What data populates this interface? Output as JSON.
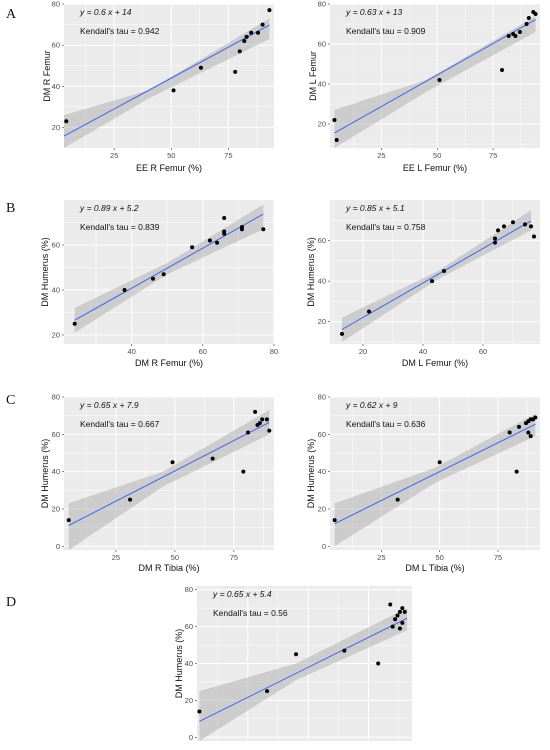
{
  "figure": {
    "panel_letters": [
      "A",
      "B",
      "C",
      "D"
    ]
  },
  "colors": {
    "panel_bg": "#ebebeb",
    "grid": "#ffffff",
    "ribbon": "#a6a6a6",
    "line": "#3366ff",
    "point": "#000000"
  },
  "chart_data": [
    {
      "id": "A-left",
      "type": "scatter",
      "equation": "y = 0.6 x + 14",
      "kendall": "Kendall's tau = 0.942",
      "xlabel": "EE R Femur (%)",
      "ylabel": "DM R Femur",
      "xlim": [
        3,
        95
      ],
      "ylim": [
        10,
        80
      ],
      "xticks": [
        25,
        50,
        75
      ],
      "yticks": [
        20,
        40,
        60,
        80
      ],
      "fit": {
        "slope": 0.6,
        "intercept": 14,
        "ribbon": [
          [
            3,
            7,
            26
          ],
          [
            40,
            34,
            38
          ],
          [
            93,
            63,
            73
          ]
        ]
      },
      "points": [
        [
          4,
          23
        ],
        [
          51,
          38
        ],
        [
          63,
          49
        ],
        [
          78,
          47
        ],
        [
          80,
          57
        ],
        [
          82,
          62
        ],
        [
          83,
          64
        ],
        [
          85,
          66
        ],
        [
          88,
          66
        ],
        [
          90,
          70
        ],
        [
          93,
          77
        ]
      ]
    },
    {
      "id": "A-right",
      "type": "scatter",
      "equation": "y = 0.63 x + 13",
      "kendall": "Kendall's tau = 0.909",
      "xlabel": "EE L Femur (%)",
      "ylabel": "DM L Femur",
      "xlim": [
        2,
        96
      ],
      "ylim": [
        8,
        80
      ],
      "xticks": [
        25,
        50,
        75
      ],
      "yticks": [
        20,
        40,
        60,
        80
      ],
      "fit": {
        "slope": 0.63,
        "intercept": 13,
        "ribbon": [
          [
            4,
            6,
            27
          ],
          [
            45,
            36,
            42
          ],
          [
            94,
            66,
            74
          ]
        ]
      },
      "points": [
        [
          4,
          22
        ],
        [
          5,
          12
        ],
        [
          51,
          42
        ],
        [
          79,
          47
        ],
        [
          82,
          64
        ],
        [
          84,
          65
        ],
        [
          85,
          64
        ],
        [
          87,
          66
        ],
        [
          90,
          70
        ],
        [
          91,
          73
        ],
        [
          93,
          76
        ],
        [
          94,
          75
        ]
      ]
    },
    {
      "id": "B-left",
      "type": "scatter",
      "equation": "y = 0.89 x + 5.2",
      "kendall": "Kendall's tau = 0.839",
      "xlabel": "DM R Femur (%)",
      "ylabel": "DM Humerus (%)",
      "xlim": [
        21,
        80
      ],
      "ylim": [
        16,
        80
      ],
      "xticks": [
        20,
        40,
        60,
        80
      ],
      "yticks": [
        20,
        40,
        60
      ],
      "fit": {
        "slope": 0.89,
        "intercept": 5.2,
        "ribbon": [
          [
            24,
            21,
            32
          ],
          [
            50,
            47,
            52
          ],
          [
            77,
            67,
            78
          ]
        ]
      },
      "points": [
        [
          24,
          25
        ],
        [
          38,
          40
        ],
        [
          46,
          45
        ],
        [
          49,
          47
        ],
        [
          57,
          59
        ],
        [
          62,
          62
        ],
        [
          64,
          61
        ],
        [
          66,
          65
        ],
        [
          66,
          66
        ],
        [
          66,
          72
        ],
        [
          71,
          67
        ],
        [
          71,
          68
        ],
        [
          77,
          67
        ]
      ]
    },
    {
      "id": "B-right",
      "type": "scatter",
      "equation": "y = 0.85 x + 5.1",
      "kendall": "Kendall's tau = 0.758",
      "xlabel": "DM L Femur (%)",
      "ylabel": "DM Humerus (%)",
      "xlim": [
        9,
        79
      ],
      "ylim": [
        9,
        80
      ],
      "xticks": [
        20,
        40,
        60
      ],
      "yticks": [
        20,
        40,
        60
      ],
      "fit": {
        "slope": 0.85,
        "intercept": 5.1,
        "ribbon": [
          [
            13,
            10,
            22
          ],
          [
            45,
            41,
            45
          ],
          [
            76,
            65,
            75
          ]
        ]
      },
      "points": [
        [
          13,
          14
        ],
        [
          22,
          25
        ],
        [
          43,
          40
        ],
        [
          47,
          45
        ],
        [
          64,
          59
        ],
        [
          64,
          61
        ],
        [
          65,
          65
        ],
        [
          67,
          67
        ],
        [
          70,
          69
        ],
        [
          74,
          68
        ],
        [
          76,
          67
        ],
        [
          77,
          62
        ]
      ]
    },
    {
      "id": "C-left",
      "type": "scatter",
      "equation": "y = 0.65 x + 7.9",
      "kendall": "Kendall's tau = 0.667",
      "xlabel": "DM R Tibia (%)",
      "ylabel": "DM Humerus (%)",
      "xlim": [
        3,
        92
      ],
      "ylim": [
        -2,
        80
      ],
      "xticks": [
        25,
        50,
        75
      ],
      "yticks": [
        0,
        20,
        40,
        60,
        80
      ],
      "fit": {
        "slope": 0.65,
        "intercept": 7.9,
        "ribbon": [
          [
            5,
            -3,
            23
          ],
          [
            45,
            32,
            40
          ],
          [
            90,
            60,
            73
          ]
        ]
      },
      "points": [
        [
          5,
          14
        ],
        [
          31,
          25
        ],
        [
          49,
          45
        ],
        [
          66,
          47
        ],
        [
          79,
          40
        ],
        [
          81,
          61
        ],
        [
          84,
          72
        ],
        [
          85,
          65
        ],
        [
          86,
          66
        ],
        [
          87,
          68
        ],
        [
          89,
          68
        ],
        [
          90,
          62
        ]
      ]
    },
    {
      "id": "C-right",
      "type": "scatter",
      "equation": "y = 0.62 x + 9",
      "kendall": "Kendall's tau = 0.636",
      "xlabel": "DM L Tibia (%)",
      "ylabel": "DM Humerus (%)",
      "xlim": [
        3,
        93
      ],
      "ylim": [
        -2,
        80
      ],
      "xticks": [
        25,
        50,
        75
      ],
      "yticks": [
        0,
        20,
        40,
        60,
        80
      ],
      "fit": {
        "slope": 0.62,
        "intercept": 9,
        "ribbon": [
          [
            5,
            0,
            23
          ],
          [
            48,
            34,
            42
          ],
          [
            91,
            59,
            71
          ]
        ]
      },
      "points": [
        [
          5,
          14
        ],
        [
          32,
          25
        ],
        [
          50,
          45
        ],
        [
          80,
          61
        ],
        [
          83,
          40
        ],
        [
          84,
          64
        ],
        [
          87,
          66
        ],
        [
          88,
          67
        ],
        [
          88,
          61
        ],
        [
          89,
          68
        ],
        [
          89,
          59
        ],
        [
          90,
          68
        ],
        [
          91,
          69
        ]
      ]
    },
    {
      "id": "D",
      "type": "scatter",
      "equation": "y = 0.65 x + 5.4",
      "kendall": "Kendall's tau = 0.56",
      "xlabel": "",
      "ylabel": "DM Humerus (%)",
      "xlim": [
        4,
        93
      ],
      "ylim": [
        -2,
        82
      ],
      "xticks": [],
      "yticks": [
        0,
        20,
        40,
        60,
        80
      ],
      "fit": {
        "slope": 0.65,
        "intercept": 5.4,
        "ribbon": [
          [
            5,
            -2,
            25
          ],
          [
            45,
            31,
            40
          ],
          [
            91,
            58,
            70
          ]
        ]
      },
      "points": [
        [
          5,
          14
        ],
        [
          33,
          25
        ],
        [
          45,
          45
        ],
        [
          65,
          47
        ],
        [
          79,
          40
        ],
        [
          84,
          72
        ],
        [
          85,
          60
        ],
        [
          86,
          64
        ],
        [
          87,
          66
        ],
        [
          88,
          68
        ],
        [
          88,
          59
        ],
        [
          89,
          62
        ],
        [
          89,
          70
        ],
        [
          90,
          68
        ]
      ]
    }
  ]
}
